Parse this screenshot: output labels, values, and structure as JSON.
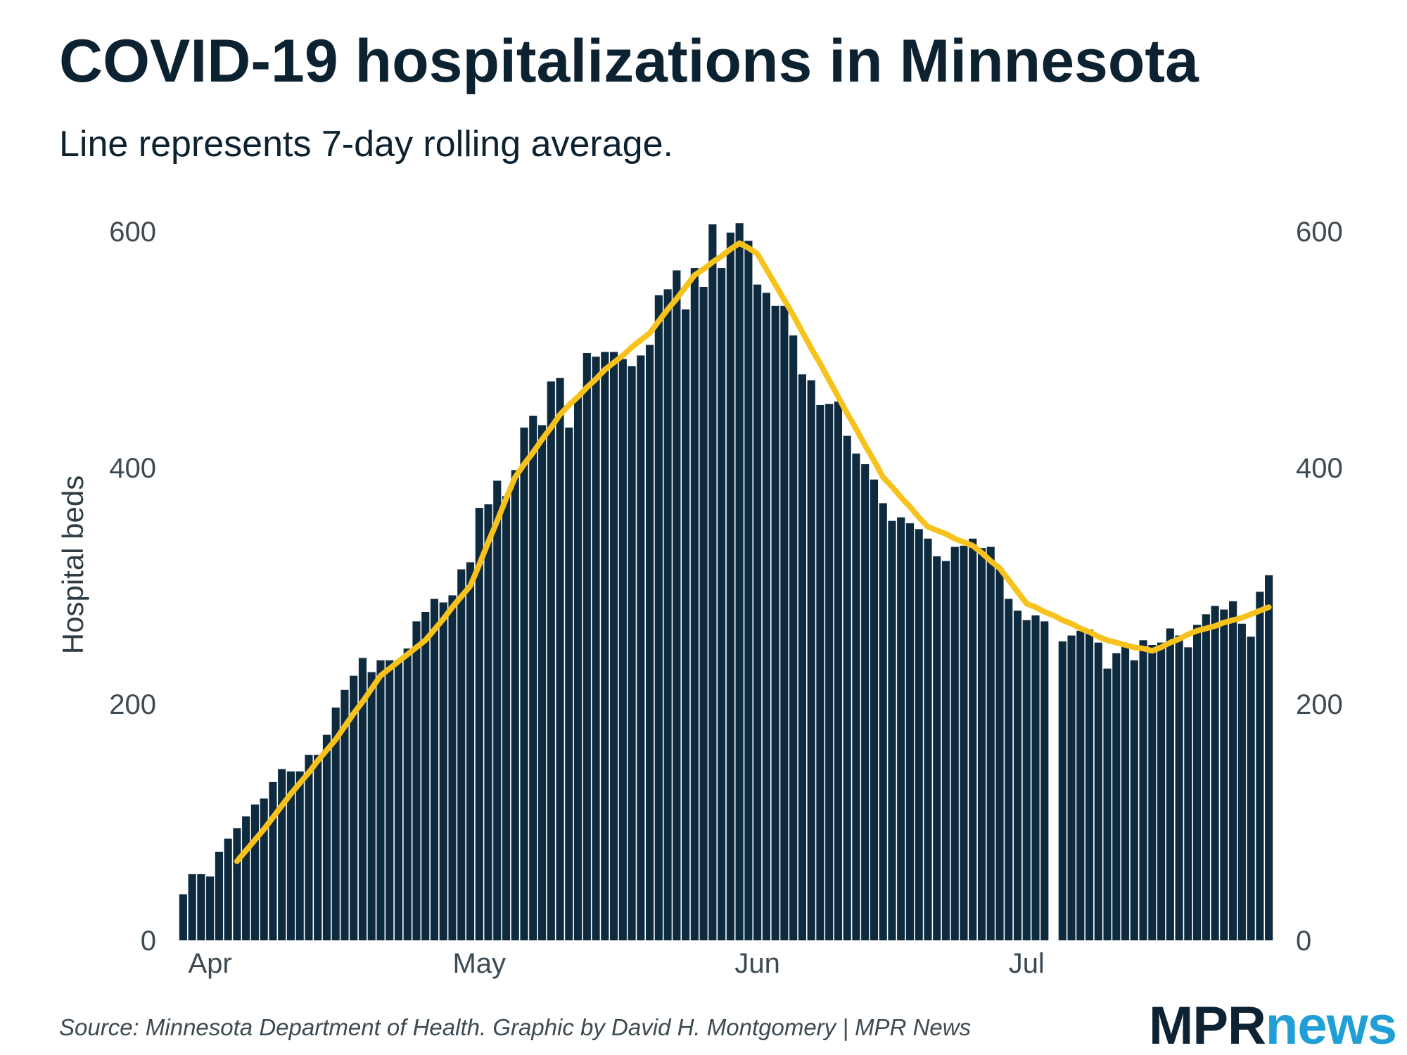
{
  "chart_data": {
    "type": "bar",
    "title": "COVID-19 hospitalizations in Minnesota",
    "subtitle": "Line represents 7-day rolling average.",
    "y_label": "Hospital beds",
    "source": "Source: Minnesota Department of Health. Graphic by David H. Montgomery | MPR News",
    "logo": [
      "MPR",
      "news"
    ],
    "categories": [
      null,
      null,
      null,
      "Apr",
      null,
      null,
      null,
      null,
      null,
      null,
      null,
      null,
      null,
      null,
      null,
      null,
      null,
      null,
      null,
      null,
      null,
      null,
      null,
      null,
      null,
      null,
      null,
      null,
      null,
      null,
      null,
      null,
      null,
      "May",
      null,
      null,
      null,
      null,
      null,
      null,
      null,
      null,
      null,
      null,
      null,
      null,
      null,
      null,
      null,
      null,
      null,
      null,
      null,
      null,
      null,
      null,
      null,
      null,
      null,
      null,
      null,
      null,
      null,
      null,
      "Jun",
      null,
      null,
      null,
      null,
      null,
      null,
      null,
      null,
      null,
      null,
      null,
      null,
      null,
      null,
      null,
      null,
      null,
      null,
      null,
      null,
      null,
      null,
      null,
      null,
      null,
      null,
      null,
      null,
      null,
      "Jul",
      null,
      null,
      null,
      null,
      null,
      null,
      null,
      null,
      null,
      null,
      null,
      null,
      null,
      null,
      null,
      null,
      null,
      null,
      null,
      null,
      null,
      null,
      null,
      null,
      null,
      null,
      null
    ],
    "series": [
      {
        "type": "bar",
        "color": "#0e2a3f",
        "values": [
          39,
          56,
          56,
          54,
          75,
          86,
          95,
          105,
          115,
          120,
          134,
          145,
          143,
          143,
          157,
          157,
          174,
          197,
          212,
          224,
          239,
          227,
          237,
          237,
          237,
          247,
          270,
          278,
          289,
          286,
          292,
          314,
          320,
          366,
          369,
          389,
          376,
          398,
          434,
          444,
          436,
          473,
          476,
          434,
          460,
          497,
          494,
          498,
          498,
          492,
          486,
          495,
          504,
          546,
          551,
          567,
          534,
          569,
          553,
          606,
          569,
          599,
          607,
          592,
          555,
          548,
          537,
          537,
          512,
          479,
          474,
          453,
          454,
          456,
          427,
          412,
          403,
          390,
          370,
          355,
          358,
          353,
          348,
          340,
          325,
          321,
          333,
          334,
          340,
          332,
          333,
          315,
          289,
          279,
          271,
          275,
          270,
          null,
          253,
          258,
          262,
          263,
          252,
          230,
          243,
          251,
          237,
          254,
          250,
          252,
          264,
          258,
          248,
          267,
          276,
          283,
          280,
          287,
          268,
          257,
          295,
          309
        ]
      },
      {
        "type": "line",
        "color": "#f7c21b",
        "values": [
          null,
          null,
          null,
          null,
          null,
          null,
          67,
          76,
          85,
          94,
          104,
          114,
          124,
          133,
          142,
          152,
          161,
          170,
          181,
          192,
          202,
          213,
          224,
          230,
          236,
          242,
          248,
          254,
          263,
          272,
          282,
          291,
          300,
          318,
          337,
          355,
          374,
          392,
          403,
          413,
          424,
          434,
          445,
          453,
          460,
          468,
          475,
          483,
          489,
          495,
          502,
          508,
          514,
          524,
          534,
          543,
          553,
          563,
          568,
          574,
          579,
          585,
          590,
          586,
          581,
          568,
          555,
          542,
          529,
          515,
          501,
          488,
          474,
          460,
          446,
          433,
          419,
          406,
          392,
          384,
          375,
          367,
          358,
          350,
          347,
          344,
          340,
          337,
          334,
          328,
          321,
          315,
          305,
          295,
          285,
          282,
          278,
          275,
          271,
          268,
          264,
          261,
          257,
          254,
          252,
          250,
          248,
          247,
          245,
          248,
          252,
          255,
          259,
          262,
          264,
          266,
          269,
          271,
          273,
          276,
          279,
          282
        ]
      }
    ],
    "ylim": [
      0,
      600
    ],
    "yticks": [
      0,
      200,
      400,
      600
    ],
    "y2lim": [
      0,
      600
    ],
    "y2ticks": [
      0,
      200,
      400,
      600
    ],
    "grid": false
  }
}
